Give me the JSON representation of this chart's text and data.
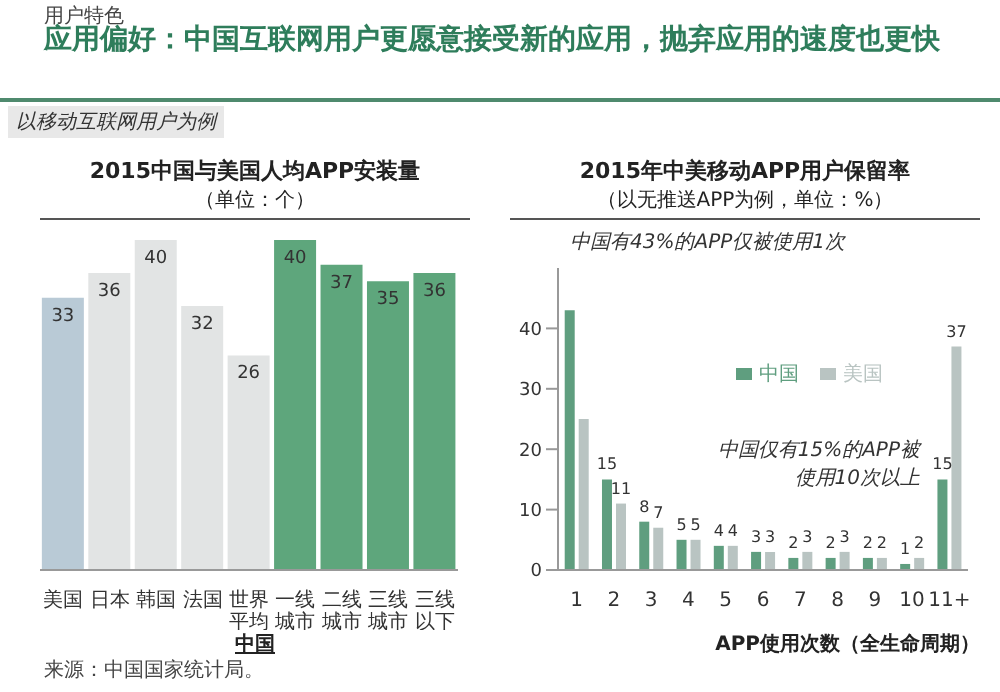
{
  "chart_data": [
    {
      "type": "bar",
      "title": "2015中国与美国人均APP安装量",
      "subtitle": "（单位：个）",
      "xlabel": "中国",
      "data_labels": true,
      "legend": false,
      "tick_labels": "x",
      "annotations": [
        "用户特色",
        "应用偏好：中国互联网用户更愿意接受新的应用，抛弃应用的速度也更快",
        "以移动互联网用户为例",
        "来源：中国国家统计局。"
      ],
      "categories": [
        "美国",
        "日本",
        "韩国",
        "法国",
        "世界平均",
        "一线城市",
        "二线城市",
        "三线城市",
        "三线以下"
      ],
      "values": [
        33,
        36,
        40,
        32,
        26,
        40,
        37,
        35,
        36
      ],
      "colors": [
        "#b9cad6",
        "#e2e4e4",
        "#e2e4e4",
        "#e2e4e4",
        "#e2e4e4",
        "#5ea67c",
        "#5ea67c",
        "#5ea67c",
        "#5ea67c"
      ]
    },
    {
      "type": "bar",
      "title": "2015年中美移动APP用户保留率",
      "subtitle": "（以无推送APP为例，单位：%）",
      "xlabel": "APP使用次数（全生命周期）",
      "legend": "top",
      "annotations": [
        "中国有43%的APP仅被使用1次",
        "中国仅有15%的APP被使用10次以上"
      ],
      "categories": [
        "1",
        "2",
        "3",
        "4",
        "5",
        "6",
        "7",
        "8",
        "9",
        "10",
        "11+"
      ],
      "series": [
        {
          "name": "中国",
          "color": "#5f9e7f",
          "values": [
            43,
            15,
            8,
            5,
            4,
            3,
            2,
            2,
            2,
            1,
            15
          ],
          "value_labels": [
            null,
            "15",
            "8",
            "5",
            "4",
            "3",
            "2",
            "2",
            "2",
            "1",
            "15"
          ]
        },
        {
          "name": "美国",
          "color": "#b9c4c2",
          "values": [
            25,
            11,
            7,
            5,
            4,
            3,
            3,
            3,
            2,
            2,
            37
          ],
          "value_labels": [
            null,
            "11",
            "7",
            "5",
            "4",
            "3",
            "3",
            "3",
            "2",
            "2",
            "37"
          ]
        }
      ],
      "ylim": [
        0,
        50
      ],
      "yticks": [
        0,
        10,
        20,
        30,
        40
      ]
    }
  ]
}
